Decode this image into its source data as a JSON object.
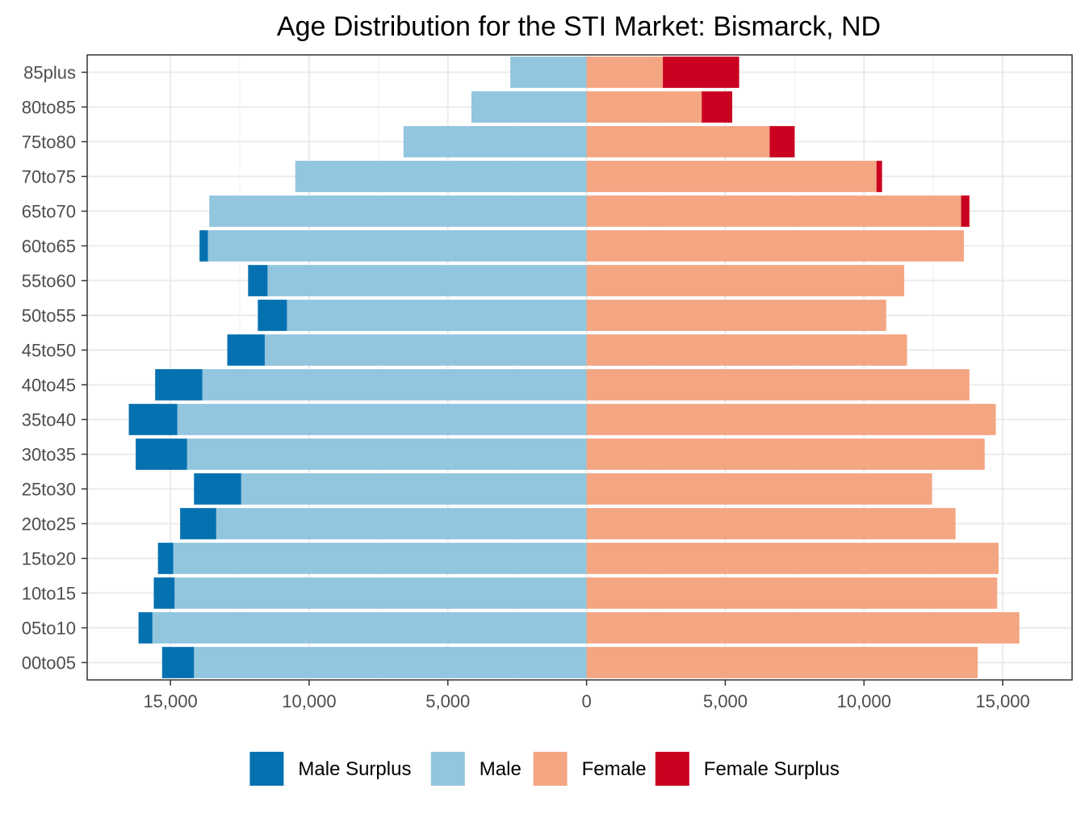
{
  "chart_data": {
    "type": "bar",
    "orientation": "horizontal",
    "title": "Age Distribution for the STI Market: Bismarck, ND",
    "xlabel": "",
    "ylabel": "",
    "xlim": [
      -18000,
      17500
    ],
    "x_ticks": [
      -15000,
      -10000,
      -5000,
      0,
      5000,
      10000,
      15000
    ],
    "x_tick_labels": [
      "15,000",
      "10,000",
      "5,000",
      "0",
      "5,000",
      "10,000",
      "15,000"
    ],
    "categories": [
      "00to05",
      "05to10",
      "10to15",
      "15to20",
      "20to25",
      "25to30",
      "30to35",
      "35to40",
      "40to45",
      "45to50",
      "50to55",
      "55to60",
      "60to65",
      "65to70",
      "70to75",
      "75to80",
      "80to85",
      "85plus"
    ],
    "series": [
      {
        "name": "Male Surplus",
        "color": "#0571b0",
        "side": "left",
        "stacked_on": "Male",
        "values": [
          1150,
          500,
          750,
          550,
          1300,
          1700,
          1850,
          1750,
          1700,
          1350,
          1050,
          700,
          300,
          0,
          0,
          0,
          0,
          0
        ]
      },
      {
        "name": "Male",
        "color": "#92c5de",
        "side": "left",
        "values": [
          14150,
          15650,
          14850,
          14900,
          13350,
          12450,
          14400,
          14750,
          13850,
          11600,
          10800,
          11500,
          13650,
          13600,
          10500,
          6600,
          4150,
          2750
        ]
      },
      {
        "name": "Female",
        "color": "#f4a582",
        "side": "right",
        "values": [
          14100,
          15600,
          14800,
          14850,
          13300,
          12450,
          14350,
          14750,
          13800,
          11550,
          10800,
          11450,
          13600,
          13500,
          10450,
          6600,
          4150,
          2750
        ]
      },
      {
        "name": "Female Surplus",
        "color": "#ca0020",
        "side": "right",
        "stacked_on": "Female",
        "values": [
          0,
          0,
          0,
          0,
          0,
          0,
          0,
          0,
          0,
          0,
          0,
          0,
          0,
          300,
          200,
          900,
          1100,
          2750
        ]
      }
    ],
    "legend": {
      "position": "bottom",
      "entries": [
        "Male Surplus",
        "Male",
        "Female",
        "Female Surplus"
      ]
    },
    "grid": true,
    "theme": "bw"
  }
}
